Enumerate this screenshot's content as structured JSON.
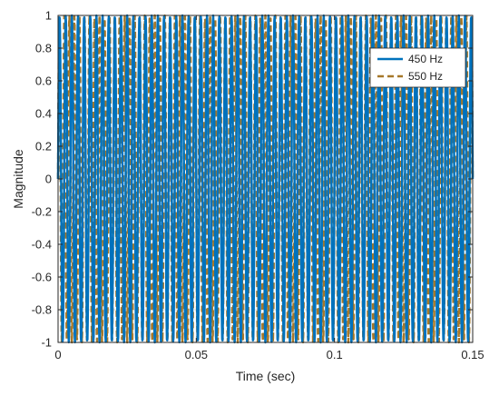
{
  "chart_data": {
    "type": "line",
    "title": "",
    "xlabel": "Time (sec)",
    "ylabel": "Magnitude",
    "xlim": [
      0,
      0.15
    ],
    "ylim": [
      -1,
      1
    ],
    "grid": true,
    "legend_position": "top-right",
    "xticks": [
      0,
      0.05,
      0.1,
      0.15
    ],
    "xtick_labels": [
      "0",
      "0.05",
      "0.1",
      "0.15"
    ],
    "yticks": [
      -1,
      -0.8,
      -0.6,
      -0.4,
      -0.2,
      0,
      0.2,
      0.4,
      0.6,
      0.8,
      1
    ],
    "ytick_labels": [
      "-1",
      "-0.8",
      "-0.6",
      "-0.4",
      "-0.2",
      "0",
      "0.2",
      "0.4",
      "0.6",
      "0.8",
      "1"
    ],
    "series": [
      {
        "name": "450 Hz",
        "function": "sin",
        "amplitude": 1,
        "sample_rate_hz": 8000,
        "frequency_hz": 450,
        "style": "solid",
        "color": "#0072BD"
      },
      {
        "name": "550 Hz",
        "function": "sin",
        "amplitude": 1,
        "sample_rate_hz": 8000,
        "frequency_hz": 550,
        "style": "dashed",
        "color": "#A6782A"
      }
    ]
  }
}
